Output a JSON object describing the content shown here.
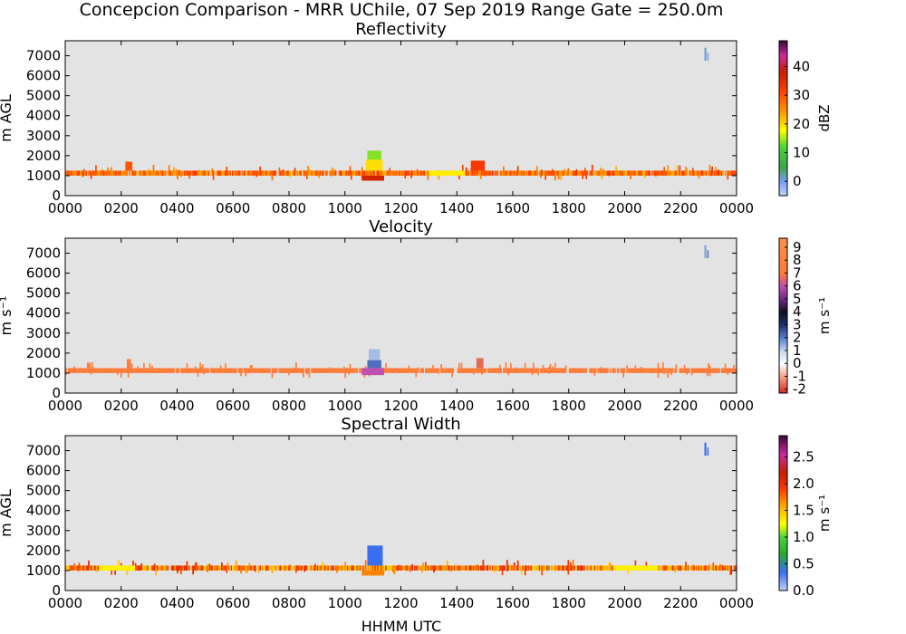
{
  "figure": {
    "title": "Concepcion Comparison - MRR UChile, 07 Sep 2019 Range Gate = 250.0m",
    "xlabel": "HHMM UTC",
    "background_color": "#e3e3e3"
  },
  "chart_data": [
    {
      "type": "heatmap",
      "title": "Reflectivity",
      "ylabel": "m AGL",
      "colorbar_label": "dBZ",
      "x_ticks": [
        "0000",
        "0200",
        "0400",
        "0600",
        "0800",
        "1000",
        "1200",
        "1400",
        "1600",
        "1800",
        "2000",
        "2200",
        "0000"
      ],
      "x_range_hours": [
        0,
        24
      ],
      "y_ticks": [
        0,
        1000,
        2000,
        3000,
        4000,
        5000,
        6000,
        7000
      ],
      "ylim": [
        0,
        7750
      ],
      "cbar_ticks": [
        0,
        10,
        20,
        30,
        40
      ],
      "cbar_range": [
        -5,
        49
      ],
      "cbar_stops": [
        {
          "v": -5,
          "c": "#c6d3f5"
        },
        {
          "v": 0,
          "c": "#7a9ef0"
        },
        {
          "v": 5,
          "c": "#3aa64a"
        },
        {
          "v": 12,
          "c": "#47d43a"
        },
        {
          "v": 18,
          "c": "#ffff00"
        },
        {
          "v": 24,
          "c": "#ff9a00"
        },
        {
          "v": 32,
          "c": "#ff3c00"
        },
        {
          "v": 38,
          "c": "#c81e00"
        },
        {
          "v": 44,
          "c": "#cc2a9a"
        },
        {
          "v": 49,
          "c": "#3a0a3a"
        }
      ],
      "band": {
        "y_base": 1000,
        "y_top": 1250,
        "base_value": 28,
        "value_spread": 6
      },
      "features": [
        {
          "x_hours": [
            10.6,
            11.4
          ],
          "y": [
            750,
            1000
          ],
          "value": 37
        },
        {
          "x_hours": [
            10.75,
            11.35
          ],
          "y": [
            1250,
            1800
          ],
          "value": 20
        },
        {
          "x_hours": [
            10.8,
            11.3
          ],
          "y": [
            1800,
            2250
          ],
          "value": 14
        },
        {
          "x_hours": [
            14.5,
            15.0
          ],
          "y": [
            1250,
            1750
          ],
          "value": 33
        },
        {
          "x_hours": [
            2.15,
            2.4
          ],
          "y": [
            1250,
            1700
          ],
          "value": 30
        },
        {
          "x_hours": [
            13.0,
            14.3
          ],
          "y": [
            1000,
            1250
          ],
          "value": 19
        },
        {
          "x_hours": [
            22.85,
            22.92
          ],
          "y": [
            6750,
            7400
          ],
          "value": 1
        },
        {
          "x_hours": [
            22.95,
            23.0
          ],
          "y": [
            6750,
            7150
          ],
          "value": 0
        }
      ]
    },
    {
      "type": "heatmap",
      "title": "Velocity",
      "ylabel": "m s⁻¹",
      "colorbar_label": "m s⁻¹",
      "x_ticks": [
        "0000",
        "0200",
        "0400",
        "0600",
        "0800",
        "1000",
        "1200",
        "1400",
        "1600",
        "1800",
        "2000",
        "2200",
        "0000"
      ],
      "x_range_hours": [
        0,
        24
      ],
      "y_ticks": [
        0,
        1000,
        2000,
        3000,
        4000,
        5000,
        6000,
        7000
      ],
      "ylim": [
        0,
        7750
      ],
      "cbar_ticks": [
        -2,
        -1,
        0,
        1,
        2,
        3,
        4,
        5,
        6,
        7,
        8,
        9
      ],
      "cbar_range": [
        -2.3,
        9.7
      ],
      "cbar_stops": [
        {
          "v": -2.3,
          "c": "#d22a1a"
        },
        {
          "v": -1,
          "c": "#f5a08a"
        },
        {
          "v": 0,
          "c": "#ffffff"
        },
        {
          "v": 1,
          "c": "#c6d6ef"
        },
        {
          "v": 2,
          "c": "#5a7fd0"
        },
        {
          "v": 3,
          "c": "#1f2f6b"
        },
        {
          "v": 4,
          "c": "#101020"
        },
        {
          "v": 5,
          "c": "#6a2a80"
        },
        {
          "v": 6,
          "c": "#c04fb0"
        },
        {
          "v": 7,
          "c": "#ff7a3a"
        },
        {
          "v": 9.7,
          "c": "#ff8f4a"
        }
      ],
      "band": {
        "y_base": 1000,
        "y_top": 1250,
        "base_value": 7.6,
        "value_spread": 0.6
      },
      "features": [
        {
          "x_hours": [
            10.6,
            11.4
          ],
          "y": [
            900,
            1250
          ],
          "value": 6.0
        },
        {
          "x_hours": [
            10.8,
            11.3
          ],
          "y": [
            1250,
            1650
          ],
          "value": 2.2
        },
        {
          "x_hours": [
            10.85,
            11.25
          ],
          "y": [
            1650,
            2200
          ],
          "value": 1.3
        },
        {
          "x_hours": [
            14.7,
            14.95
          ],
          "y": [
            1250,
            1750
          ],
          "value": -1.6
        },
        {
          "x_hours": [
            2.2,
            2.35
          ],
          "y": [
            1250,
            1700
          ],
          "value": 7.4
        },
        {
          "x_hours": [
            22.85,
            22.92
          ],
          "y": [
            6750,
            7400
          ],
          "value": 1.6
        },
        {
          "x_hours": [
            22.95,
            23.0
          ],
          "y": [
            6750,
            7150
          ],
          "value": 2.1
        }
      ]
    },
    {
      "type": "heatmap",
      "title": "Spectral Width",
      "ylabel": "m AGL",
      "colorbar_label": "m s⁻¹",
      "x_ticks": [
        "0000",
        "0200",
        "0400",
        "0600",
        "0800",
        "1000",
        "1200",
        "1400",
        "1600",
        "1800",
        "2000",
        "2200",
        "0000"
      ],
      "x_range_hours": [
        0,
        24
      ],
      "y_ticks": [
        0,
        1000,
        2000,
        3000,
        4000,
        5000,
        6000,
        7000
      ],
      "ylim": [
        0,
        7750
      ],
      "cbar_ticks": [
        "0.0",
        "0.5",
        "1.0",
        "1.5",
        "2.0",
        "2.5"
      ],
      "cbar_range": [
        0,
        2.9
      ],
      "cbar_stops": [
        {
          "v": 0,
          "c": "#c6d3f5"
        },
        {
          "v": 0.35,
          "c": "#3a6ef0"
        },
        {
          "v": 0.7,
          "c": "#2aaa2a"
        },
        {
          "v": 1.0,
          "c": "#47d43a"
        },
        {
          "v": 1.25,
          "c": "#ffff00"
        },
        {
          "v": 1.6,
          "c": "#ffa500"
        },
        {
          "v": 1.9,
          "c": "#ff3c00"
        },
        {
          "v": 2.2,
          "c": "#c81e00"
        },
        {
          "v": 2.55,
          "c": "#cc2a9a"
        },
        {
          "v": 2.9,
          "c": "#3a0a3a"
        }
      ],
      "band": {
        "y_base": 1000,
        "y_top": 1250,
        "base_value": 1.75,
        "value_spread": 0.35
      },
      "features": [
        {
          "x_hours": [
            10.6,
            11.4
          ],
          "y": [
            750,
            1000
          ],
          "value": 1.7
        },
        {
          "x_hours": [
            10.8,
            11.35
          ],
          "y": [
            1250,
            2250
          ],
          "value": 0.35
        },
        {
          "x_hours": [
            1.2,
            2.5
          ],
          "y": [
            1000,
            1250
          ],
          "value": 1.3
        },
        {
          "x_hours": [
            19.6,
            21.2
          ],
          "y": [
            1000,
            1250
          ],
          "value": 1.3
        },
        {
          "x_hours": [
            22.85,
            22.92
          ],
          "y": [
            6750,
            7400
          ],
          "value": 0.35
        },
        {
          "x_hours": [
            22.95,
            23.0
          ],
          "y": [
            6750,
            7150
          ],
          "value": 0.35
        }
      ]
    }
  ]
}
